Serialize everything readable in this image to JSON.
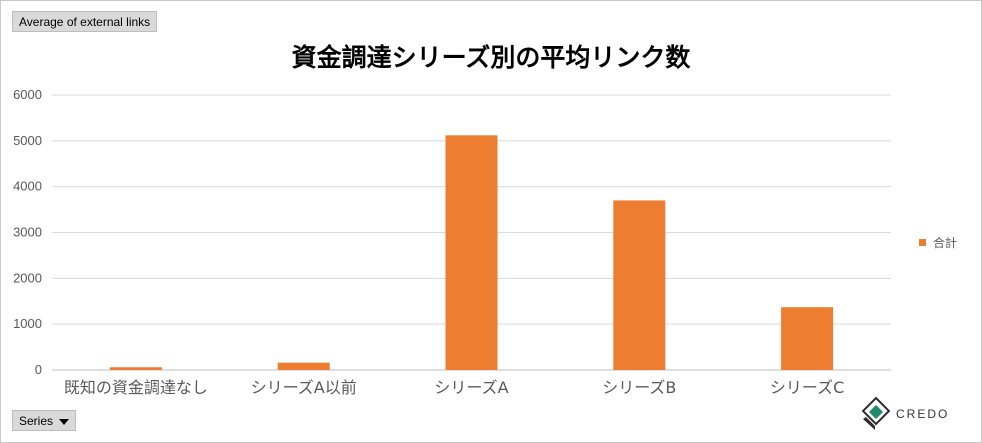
{
  "value_field_label": "Average of external links",
  "series_field_label": "Series",
  "logo_text": "CREDO",
  "colors": {
    "bar": "#ed7d31",
    "grid": "#d9d9d9",
    "axis": "#bfbfbf"
  },
  "chart_data": {
    "type": "bar",
    "title": "資金調達シリーズ別の平均リンク数",
    "xlabel": "",
    "ylabel": "",
    "categories": [
      "既知の資金調達なし",
      "シリーズA以前",
      "シリーズA",
      "シリーズB",
      "シリーズC"
    ],
    "series": [
      {
        "name": "合計",
        "values": [
          60,
          160,
          5120,
          3700,
          1370
        ]
      }
    ],
    "ylim": [
      0,
      6000
    ],
    "yticks": [
      0,
      1000,
      2000,
      3000,
      4000,
      5000,
      6000
    ],
    "grid": true,
    "legend": "right"
  }
}
